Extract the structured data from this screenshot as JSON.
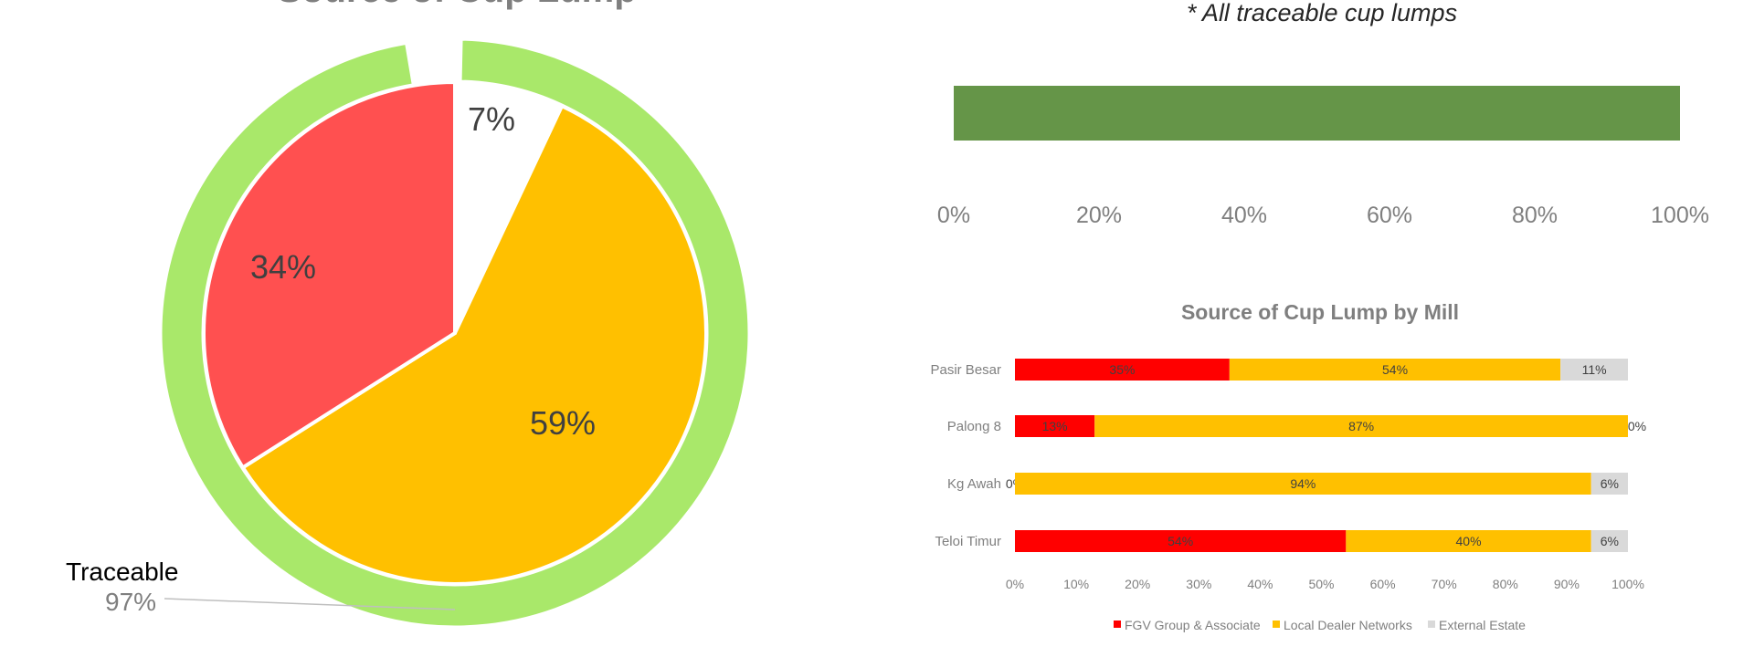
{
  "colors": {
    "fgv": "#ff0000",
    "local": "#ffc000",
    "external": "#d9d9d9",
    "pie_red": "#ff5050",
    "pie_white": "#ffffff",
    "ring": "#a9e86a",
    "bar_green": "#659548"
  },
  "chart_data": [
    {
      "type": "pie",
      "title": "Source of Cup Lump",
      "slices": [
        {
          "label": "59%",
          "value": 59,
          "color": "#ffc000"
        },
        {
          "label": "34%",
          "value": 34,
          "color": "#ff5050"
        },
        {
          "label": "7%",
          "value": 7,
          "color": "#ffffff"
        }
      ],
      "ring": {
        "name": "Traceable",
        "value_label": "97%",
        "value": 97
      }
    },
    {
      "type": "bar",
      "orientation": "horizontal",
      "note": "* All traceable cup lumps",
      "values": [
        100
      ],
      "xlim": [
        0,
        100
      ],
      "xticks": [
        "0%",
        "20%",
        "40%",
        "60%",
        "80%",
        "100%"
      ]
    },
    {
      "type": "bar",
      "orientation": "horizontal",
      "stacked": true,
      "title": "Source of Cup Lump by Mill",
      "categories": [
        "Pasir Besar",
        "Palong 8",
        "Kg Awah",
        "Teloi Timur"
      ],
      "series": [
        {
          "name": "FGV Group & Associate",
          "values": [
            35,
            13,
            0,
            54
          ],
          "labels": [
            "35%",
            "13%",
            "0%",
            "54%"
          ]
        },
        {
          "name": "Local Dealer Networks",
          "values": [
            54,
            87,
            94,
            40
          ],
          "labels": [
            "54%",
            "87%",
            "94%",
            "40%"
          ]
        },
        {
          "name": "External Estate",
          "values": [
            11,
            0,
            6,
            6
          ],
          "labels": [
            "11%",
            "0%",
            "6%",
            "6%"
          ]
        }
      ],
      "xlim": [
        0,
        100
      ],
      "xticks": [
        "0%",
        "10%",
        "20%",
        "30%",
        "40%",
        "50%",
        "60%",
        "70%",
        "80%",
        "90%",
        "100%"
      ],
      "legend": "bottom"
    }
  ]
}
